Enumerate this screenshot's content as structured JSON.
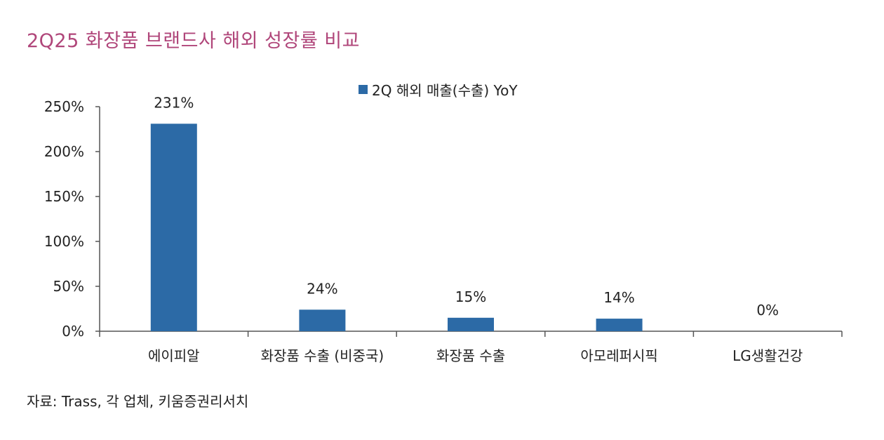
{
  "title": "2Q25 화장품 브랜드사 해외 성장률 비교",
  "source": "자료: Trass, 각 업체, 키움증권리서치",
  "colors": {
    "title": "#b0467a",
    "bar": "#2c6aa6",
    "axis": "#555555"
  },
  "chart_data": {
    "type": "bar",
    "categories": [
      "에이피알",
      "화장품 수출 (비중국)",
      "화장품 수출",
      "아모레퍼시픽",
      "LG생활건강"
    ],
    "series": [
      {
        "name": "2Q 해외 매출(수출) YoY",
        "values": [
          231,
          24,
          15,
          14,
          0
        ]
      }
    ],
    "data_labels": [
      "231%",
      "24%",
      "15%",
      "14%",
      "0%"
    ],
    "yticks": [
      "0%",
      "50%",
      "100%",
      "150%",
      "200%",
      "250%"
    ],
    "ytick_values": [
      0,
      50,
      100,
      150,
      200,
      250
    ],
    "ylim": [
      0,
      250
    ],
    "legend_position": "top",
    "grid": false
  }
}
